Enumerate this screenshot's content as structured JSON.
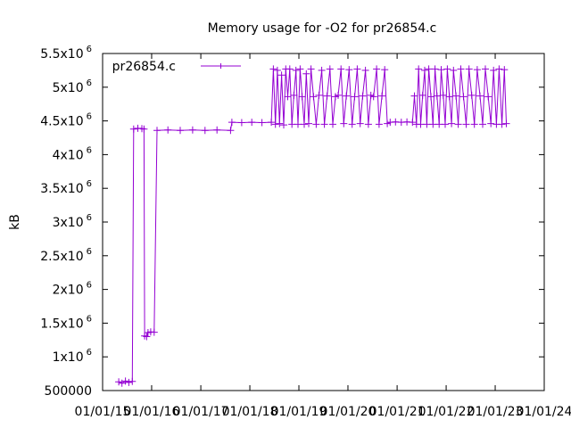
{
  "chart_data": {
    "type": "line",
    "title": "Memory usage for -O2 for pr26854.c",
    "ylabel": "kB",
    "xlabel": "",
    "ylim": [
      500000,
      5500000
    ],
    "xlim": [
      "2015-01-01",
      "2024-01-01"
    ],
    "y_ticks": [
      {
        "value": 500000,
        "label": "500000",
        "exp": ""
      },
      {
        "value": 1000000,
        "label": "1x10",
        "exp": "6"
      },
      {
        "value": 1500000,
        "label": "1.5x10",
        "exp": "6"
      },
      {
        "value": 2000000,
        "label": "2x10",
        "exp": "6"
      },
      {
        "value": 2500000,
        "label": "2.5x10",
        "exp": "6"
      },
      {
        "value": 3000000,
        "label": "3x10",
        "exp": "6"
      },
      {
        "value": 3500000,
        "label": "3.5x10",
        "exp": "6"
      },
      {
        "value": 4000000,
        "label": "4x10",
        "exp": "6"
      },
      {
        "value": 4500000,
        "label": "4.5x10",
        "exp": "6"
      },
      {
        "value": 5000000,
        "label": "5x10",
        "exp": "6"
      },
      {
        "value": 5500000,
        "label": "5.5x10",
        "exp": "6"
      }
    ],
    "x_ticks": [
      {
        "value": "2015-01-01",
        "label": "01/01/15"
      },
      {
        "value": "2016-01-01",
        "label": "01/01/16"
      },
      {
        "value": "2017-01-01",
        "label": "01/01/17"
      },
      {
        "value": "2018-01-01",
        "label": "01/01/18"
      },
      {
        "value": "2019-01-01",
        "label": "01/01/19"
      },
      {
        "value": "2020-01-01",
        "label": "01/01/20"
      },
      {
        "value": "2021-01-01",
        "label": "01/01/21"
      },
      {
        "value": "2022-01-01",
        "label": "01/01/22"
      },
      {
        "value": "2023-01-01",
        "label": "01/01/23"
      },
      {
        "value": "2024-01-01",
        "label": "01/01/24"
      }
    ],
    "legend_position": "top-left",
    "grid": false,
    "series": [
      {
        "name": "pr26854.c",
        "color": "#9400d3",
        "points": [
          [
            "2015-05-01",
            630000
          ],
          [
            "2015-05-25",
            610000
          ],
          [
            "2015-06-20",
            640000
          ],
          [
            "2015-07-15",
            620000
          ],
          [
            "2015-08-10",
            635000
          ],
          [
            "2015-08-20",
            4380000
          ],
          [
            "2015-09-20",
            4390000
          ],
          [
            "2015-10-20",
            4385000
          ],
          [
            "2015-11-05",
            4380000
          ],
          [
            "2015-11-10",
            1310000
          ],
          [
            "2015-11-25",
            1300000
          ],
          [
            "2015-12-05",
            1360000
          ],
          [
            "2015-12-25",
            1370000
          ],
          [
            "2016-01-20",
            1365000
          ],
          [
            "2016-02-10",
            4360000
          ],
          [
            "2016-05-01",
            4365000
          ],
          [
            "2016-08-01",
            4360000
          ],
          [
            "2016-11-01",
            4365000
          ],
          [
            "2017-02-01",
            4360000
          ],
          [
            "2017-05-01",
            4365000
          ],
          [
            "2017-08-10",
            4360000
          ],
          [
            "2017-08-20",
            4480000
          ],
          [
            "2017-11-01",
            4475000
          ],
          [
            "2018-01-15",
            4480000
          ],
          [
            "2018-04-01",
            4475000
          ],
          [
            "2018-06-10",
            4480000
          ],
          [
            "2018-06-25",
            5270000
          ],
          [
            "2018-07-10",
            4450000
          ],
          [
            "2018-07-25",
            5250000
          ],
          [
            "2018-08-10",
            4460000
          ],
          [
            "2018-08-25",
            5180000
          ],
          [
            "2018-09-10",
            4440000
          ],
          [
            "2018-09-25",
            5270000
          ],
          [
            "2018-10-10",
            4860000
          ],
          [
            "2018-10-25",
            5270000
          ],
          [
            "2018-11-10",
            4450000
          ],
          [
            "2018-11-25",
            4880000
          ],
          [
            "2018-12-10",
            5250000
          ],
          [
            "2018-12-25",
            4450000
          ],
          [
            "2019-01-10",
            5270000
          ],
          [
            "2019-01-25",
            4860000
          ],
          [
            "2019-02-10",
            4450000
          ],
          [
            "2019-02-25",
            5200000
          ],
          [
            "2019-03-15",
            4460000
          ],
          [
            "2019-04-01",
            5270000
          ],
          [
            "2019-04-20",
            4860000
          ],
          [
            "2019-05-10",
            4450000
          ],
          [
            "2019-05-30",
            4880000
          ],
          [
            "2019-06-20",
            5250000
          ],
          [
            "2019-07-10",
            4450000
          ],
          [
            "2019-07-30",
            4870000
          ],
          [
            "2019-08-20",
            5270000
          ],
          [
            "2019-09-10",
            4450000
          ],
          [
            "2019-09-30",
            4860000
          ],
          [
            "2019-10-20",
            4880000
          ],
          [
            "2019-11-10",
            5270000
          ],
          [
            "2019-12-01",
            4460000
          ],
          [
            "2019-12-20",
            4870000
          ],
          [
            "2020-01-10",
            5260000
          ],
          [
            "2020-02-01",
            4450000
          ],
          [
            "2020-02-20",
            4860000
          ],
          [
            "2020-03-10",
            5270000
          ],
          [
            "2020-04-01",
            4460000
          ],
          [
            "2020-04-20",
            4870000
          ],
          [
            "2020-05-10",
            5250000
          ],
          [
            "2020-06-01",
            4450000
          ],
          [
            "2020-06-20",
            4880000
          ],
          [
            "2020-07-10",
            4860000
          ],
          [
            "2020-08-01",
            5270000
          ],
          [
            "2020-08-20",
            4450000
          ],
          [
            "2020-09-10",
            4870000
          ],
          [
            "2020-10-01",
            5260000
          ],
          [
            "2020-10-20",
            4460000
          ],
          [
            "2020-11-10",
            4480000
          ],
          [
            "2020-12-20",
            4485000
          ],
          [
            "2021-02-01",
            4480000
          ],
          [
            "2021-03-15",
            4485000
          ],
          [
            "2021-04-25",
            4480000
          ],
          [
            "2021-05-10",
            4870000
          ],
          [
            "2021-05-25",
            4450000
          ],
          [
            "2021-06-10",
            5270000
          ],
          [
            "2021-06-25",
            4450000
          ],
          [
            "2021-07-10",
            4880000
          ],
          [
            "2021-07-25",
            5250000
          ],
          [
            "2021-08-10",
            4450000
          ],
          [
            "2021-08-25",
            5270000
          ],
          [
            "2021-09-10",
            4860000
          ],
          [
            "2021-09-25",
            4450000
          ],
          [
            "2021-10-10",
            5270000
          ],
          [
            "2021-10-25",
            4870000
          ],
          [
            "2021-11-10",
            4450000
          ],
          [
            "2021-11-25",
            5260000
          ],
          [
            "2021-12-10",
            4880000
          ],
          [
            "2021-12-25",
            4450000
          ],
          [
            "2022-01-10",
            5270000
          ],
          [
            "2022-01-25",
            4860000
          ],
          [
            "2022-02-10",
            4460000
          ],
          [
            "2022-02-25",
            5250000
          ],
          [
            "2022-03-15",
            4870000
          ],
          [
            "2022-04-01",
            4450000
          ],
          [
            "2022-04-20",
            5270000
          ],
          [
            "2022-05-10",
            4860000
          ],
          [
            "2022-05-30",
            4450000
          ],
          [
            "2022-06-20",
            5270000
          ],
          [
            "2022-07-10",
            4880000
          ],
          [
            "2022-07-30",
            4450000
          ],
          [
            "2022-08-20",
            5260000
          ],
          [
            "2022-09-10",
            4870000
          ],
          [
            "2022-09-30",
            4450000
          ],
          [
            "2022-10-20",
            5270000
          ],
          [
            "2022-11-10",
            4860000
          ],
          [
            "2022-11-30",
            4460000
          ],
          [
            "2022-12-20",
            5250000
          ],
          [
            "2023-01-10",
            4450000
          ],
          [
            "2023-01-30",
            5270000
          ],
          [
            "2023-02-20",
            4450000
          ],
          [
            "2023-03-10",
            5260000
          ],
          [
            "2023-03-25",
            4460000
          ]
        ]
      }
    ]
  }
}
